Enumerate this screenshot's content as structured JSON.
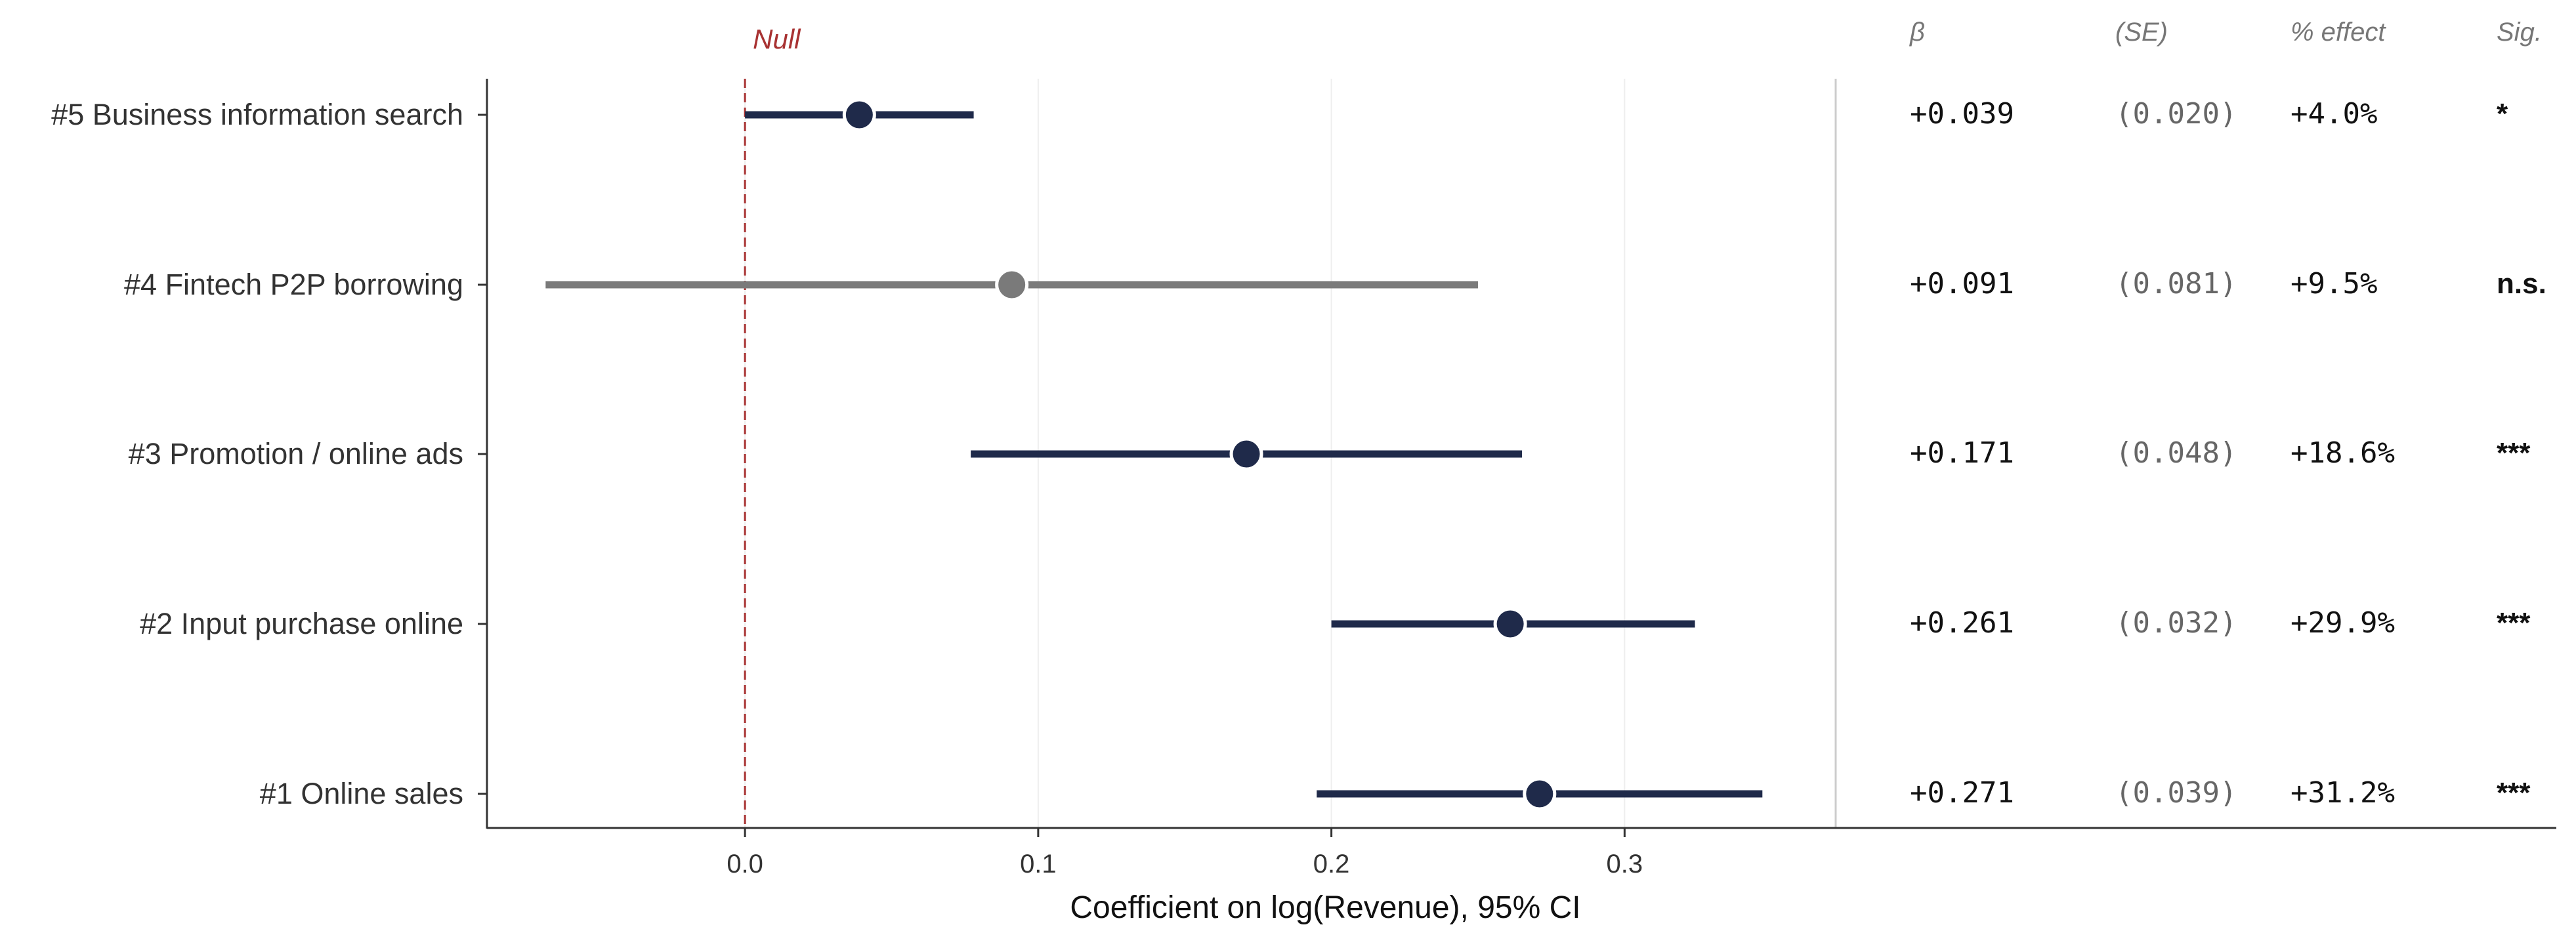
{
  "chart_data": {
    "type": "forest",
    "xlabel": "Coefficient on log(Revenue), 95% CI",
    "xlim": [
      -0.088,
      0.372
    ],
    "xticks": [
      0.0,
      0.1,
      0.2,
      0.3
    ],
    "xtick_labels": [
      "0.0",
      "0.1",
      "0.2",
      "0.3"
    ],
    "grid": "vertical",
    "reference_line": {
      "x": 0.0,
      "label": "Null",
      "style": "dashed",
      "color": "#a83232"
    },
    "column_headers": {
      "beta": "β",
      "se": "(SE)",
      "effect": "% effect",
      "sig": "Sig."
    },
    "rows": [
      {
        "label": "#5  Business information search",
        "estimate": 0.039,
        "ci_low": 0.0,
        "ci_high": 0.078,
        "beta": "+0.039",
        "se": "(0.020)",
        "effect": "+4.0%",
        "sig": "*",
        "significant": true
      },
      {
        "label": "#4  Fintech P2P borrowing",
        "estimate": 0.091,
        "ci_low": -0.068,
        "ci_high": 0.25,
        "beta": "+0.091",
        "se": "(0.081)",
        "effect": "+9.5%",
        "sig": "n.s.",
        "significant": false
      },
      {
        "label": "#3  Promotion / online ads",
        "estimate": 0.171,
        "ci_low": 0.077,
        "ci_high": 0.265,
        "beta": "+0.171",
        "se": "(0.048)",
        "effect": "+18.6%",
        "sig": "***",
        "significant": true
      },
      {
        "label": "#2  Input purchase online",
        "estimate": 0.261,
        "ci_low": 0.2,
        "ci_high": 0.324,
        "beta": "+0.261",
        "se": "(0.032)",
        "effect": "+29.9%",
        "sig": "***",
        "significant": true
      },
      {
        "label": "#1  Online sales",
        "estimate": 0.271,
        "ci_low": 0.195,
        "ci_high": 0.347,
        "beta": "+0.271",
        "se": "(0.039)",
        "effect": "+31.2%",
        "sig": "***",
        "significant": true
      }
    ],
    "colors": {
      "significant": "#1f2a4a",
      "not_significant": "#7a7a7a",
      "reference": "#a83232",
      "axis": "#333333",
      "grid": "#eeeeee",
      "divider": "#cccccc",
      "header": "#777777"
    }
  }
}
